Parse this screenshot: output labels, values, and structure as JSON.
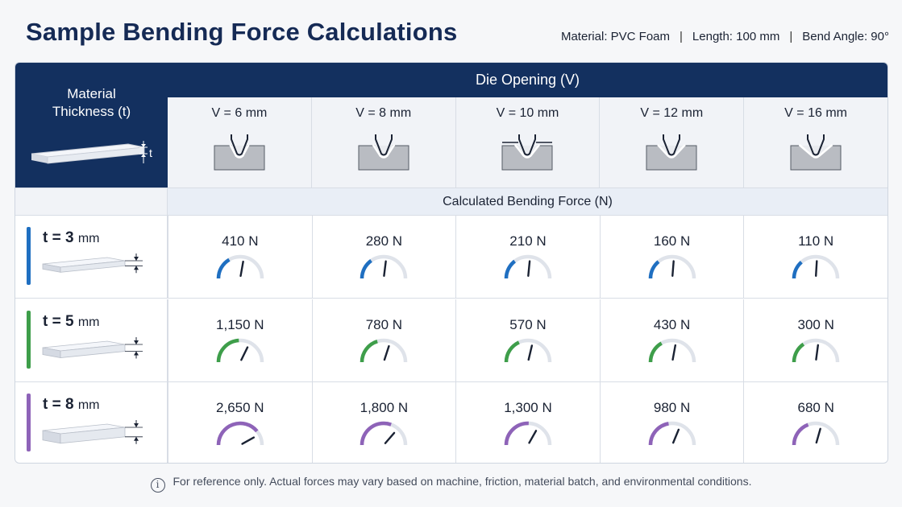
{
  "title": "Sample Bending Force Calculations",
  "meta": {
    "material": "Material: PVC Foam",
    "length": "Length: 100 mm",
    "angle": "Bend Angle: 90°",
    "separator": "|"
  },
  "header": {
    "thickness_label_line1": "Material",
    "thickness_label_line2": "Thickness (t)",
    "thickness_symbol": "t",
    "die_opening_label": "Die Opening (V)",
    "die_icon": "v-die-icon",
    "plate_icon": "plate-icon"
  },
  "die_openings": [
    {
      "label": "V = 6 mm",
      "width_mm": 6
    },
    {
      "label": "V = 8 mm",
      "width_mm": 8
    },
    {
      "label": "V = 10 mm",
      "width_mm": 10
    },
    {
      "label": "V = 12 mm",
      "width_mm": 12
    },
    {
      "label": "V = 16 mm",
      "width_mm": 16
    }
  ],
  "calc_label": "Calculated Bending Force (N)",
  "gauge_icon": "gauge-icon",
  "rows": [
    {
      "label": "t = 3",
      "unit": "mm",
      "thickness_mm": 3,
      "color": "#1f6fc1",
      "color_light": "#7fb2e0",
      "forces": [
        "410 N",
        "280 N",
        "210 N",
        "160 N",
        "110 N"
      ],
      "force_values": [
        410,
        280,
        210,
        160,
        110
      ]
    },
    {
      "label": "t = 5",
      "unit": "mm",
      "thickness_mm": 5,
      "color": "#3e9e4a",
      "color_light": "#8cc46a",
      "forces": [
        "1,150 N",
        "780 N",
        "570 N",
        "430 N",
        "300 N"
      ],
      "force_values": [
        1150,
        780,
        570,
        430,
        300
      ]
    },
    {
      "label": "t = 8",
      "unit": "mm",
      "thickness_mm": 8,
      "color": "#8e63b8",
      "color_light": "#b99ad6",
      "forces": [
        "2,650 N",
        "1,800 N",
        "1,300 N",
        "980 N",
        "680 N"
      ],
      "force_values": [
        2650,
        1800,
        1300,
        980,
        680
      ]
    }
  ],
  "footnote": "For reference only. Actual forces may vary based on machine, friction, material batch, and environmental conditions.",
  "info_icon": "info-icon",
  "info_glyph": "i"
}
